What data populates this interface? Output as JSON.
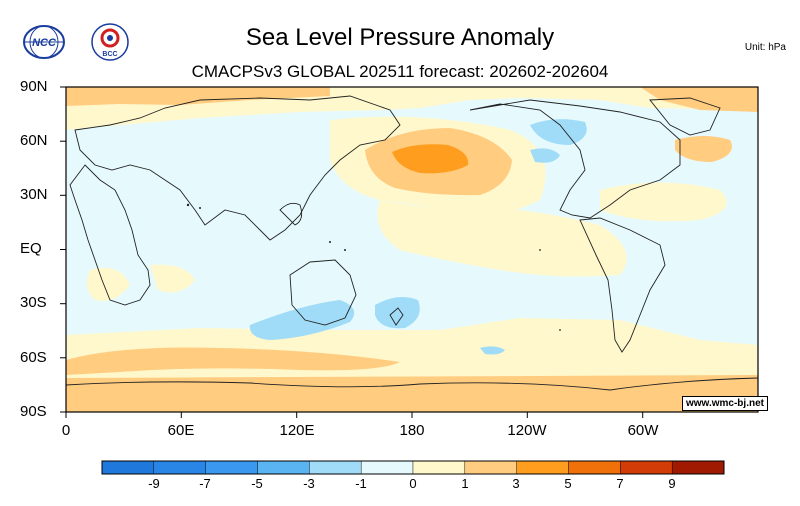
{
  "title": "Sea Level Pressure Anomaly",
  "subtitle": "CMACPSv3 GLOBAL 202511 forecast: 202602-202604",
  "unit": "Unit: hPa",
  "watermark": "www.wmc-bj.net",
  "logos": {
    "left": "NCC",
    "right": "BCC"
  },
  "lat_labels": [
    "90N",
    "60N",
    "30N",
    "EQ",
    "30S",
    "60S",
    "90S"
  ],
  "lon_labels": [
    "0",
    "60E",
    "120E",
    "180",
    "120W",
    "60W"
  ],
  "colorbar": {
    "labels": [
      "-9",
      "-7",
      "-5",
      "-3",
      "-1",
      "0",
      "1",
      "3",
      "5",
      "7",
      "9"
    ],
    "colors": [
      "#1f78dc",
      "#2a86e6",
      "#3a98ee",
      "#5bb4f2",
      "#a0dcf8",
      "#e6fafe",
      "#fff8cc",
      "#ffcc80",
      "#ff9d1e",
      "#f0700a",
      "#d23c06",
      "#a01a02"
    ]
  }
}
